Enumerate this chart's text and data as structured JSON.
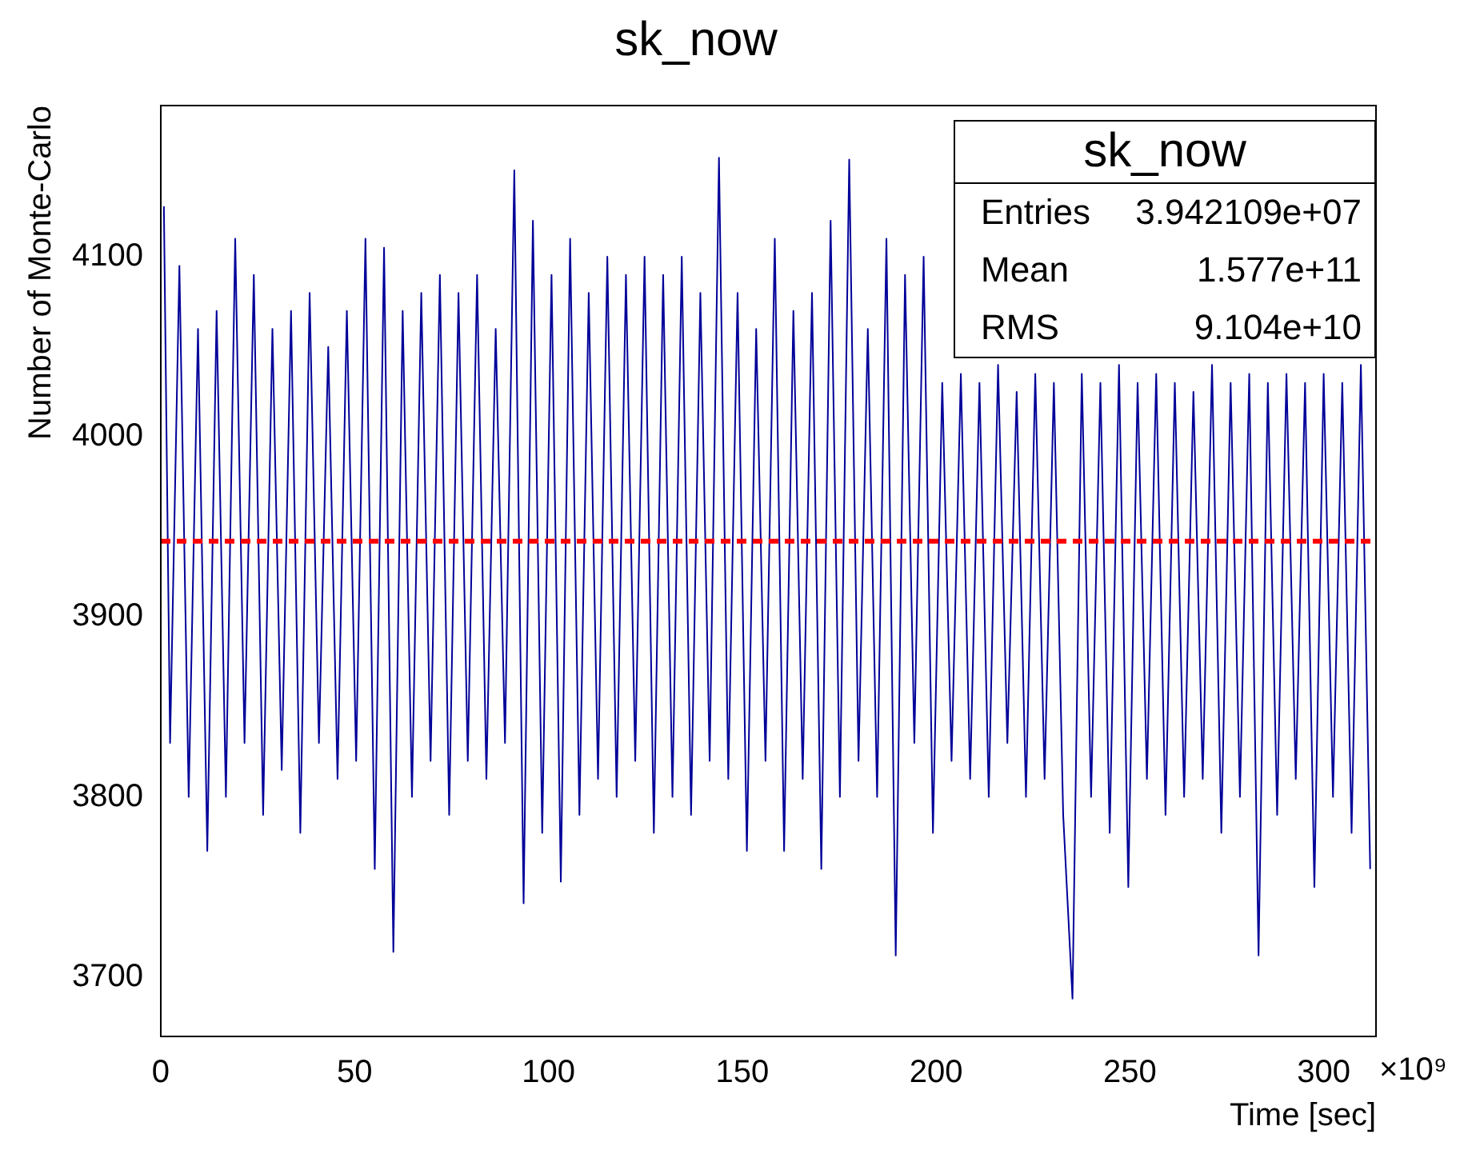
{
  "chart_data": {
    "type": "line",
    "title": "sk_now",
    "xlabel": "Time [sec]",
    "ylabel": "Number of Monte-Carlo",
    "annotations": [
      "×10⁹",
      "sk_now",
      "Entries",
      "3.942109e+07",
      "Mean",
      "1.577e+11",
      "RMS",
      "9.104e+10"
    ],
    "x": [
      0.8,
      2.4,
      4.8,
      7.2,
      9.6,
      12,
      14.4,
      16.8,
      19.2,
      21.6,
      24,
      26.4,
      28.8,
      31.2,
      33.6,
      36,
      38.4,
      40.8,
      43.2,
      45.6,
      48,
      50.4,
      52.8,
      55.2,
      57.6,
      60,
      62.4,
      64.8,
      67.2,
      69.6,
      72,
      74.4,
      76.8,
      79.2,
      81.6,
      84,
      86.4,
      88.8,
      91.2,
      93.6,
      96,
      98.4,
      100.8,
      103.2,
      105.6,
      108,
      110.4,
      112.8,
      115.2,
      117.6,
      120,
      122.4,
      124.8,
      127.2,
      129.6,
      132,
      134.4,
      136.8,
      139.2,
      141.6,
      144,
      146.4,
      148.8,
      151.2,
      153.6,
      156,
      158.4,
      160.8,
      163.2,
      165.6,
      168,
      170.4,
      172.8,
      175.2,
      177.6,
      180,
      182.4,
      184.8,
      187.2,
      189.6,
      192,
      194.4,
      196.8,
      199.2,
      201.6,
      204,
      206.4,
      208.8,
      211.2,
      213.6,
      216,
      218.4,
      220.8,
      223.2,
      225.6,
      228,
      230.4,
      232.8,
      235.2,
      237.6,
      240,
      242.4,
      244.8,
      247.2,
      249.6,
      252,
      254.4,
      256.8,
      259.2,
      261.6,
      264,
      266.4,
      268.8,
      271.2,
      273.6,
      276,
      278.4,
      280.8,
      283.2,
      285.6,
      288,
      290.4,
      292.8,
      295.2,
      297.6,
      300,
      302.4,
      304.8,
      307.2,
      309.6,
      312
    ],
    "series": [
      {
        "color": "#000099",
        "values": [
          4128,
          3830,
          4095,
          3800,
          4060,
          3770,
          4070,
          3800,
          4110,
          3830,
          4090,
          3790,
          4060,
          3815,
          4070,
          3780,
          4080,
          3830,
          4050,
          3810,
          4070,
          3820,
          4110,
          3760,
          4105,
          3714,
          4070,
          3800,
          4080,
          3820,
          4090,
          3790,
          4080,
          3820,
          4090,
          3810,
          4060,
          3830,
          4148,
          3741,
          4120,
          3780,
          4090,
          3753,
          4110,
          3790,
          4080,
          3810,
          4100,
          3800,
          4090,
          3820,
          4100,
          3780,
          4090,
          3800,
          4100,
          3790,
          4080,
          3820,
          4155,
          3810,
          4080,
          3770,
          4060,
          3820,
          4110,
          3770,
          4070,
          3810,
          4080,
          3760,
          4120,
          3800,
          4154,
          3820,
          4060,
          3800,
          4110,
          3712,
          4090,
          3830,
          4100,
          3780,
          4030,
          3820,
          4035,
          3810,
          4030,
          3800,
          4040,
          3830,
          4025,
          3800,
          4035,
          3810,
          4030,
          3790,
          3688,
          4035,
          3800,
          4030,
          3780,
          4040,
          3750,
          4030,
          3810,
          4035,
          3790,
          4030,
          3800,
          4025,
          3810,
          4040,
          3780,
          4030,
          3800,
          4035,
          3712,
          4030,
          3790,
          4035,
          3810,
          4030,
          3750,
          4035,
          3800,
          4030,
          3780,
          4040,
          3760
        ]
      }
    ],
    "xlim": [
      0,
      313.5
    ],
    "xticks": [
      0,
      50,
      100,
      150,
      200,
      250,
      300
    ],
    "ylim": [
      3667,
      4184
    ],
    "yticks": [
      3700,
      3800,
      3900,
      4000,
      4100
    ],
    "ref_lines": [
      {
        "axis": "y",
        "value": 3942,
        "color": "#ff0000",
        "line_style": "dashed"
      }
    ],
    "grid": false,
    "legend": false,
    "marker": "none",
    "line_style": "solid"
  }
}
